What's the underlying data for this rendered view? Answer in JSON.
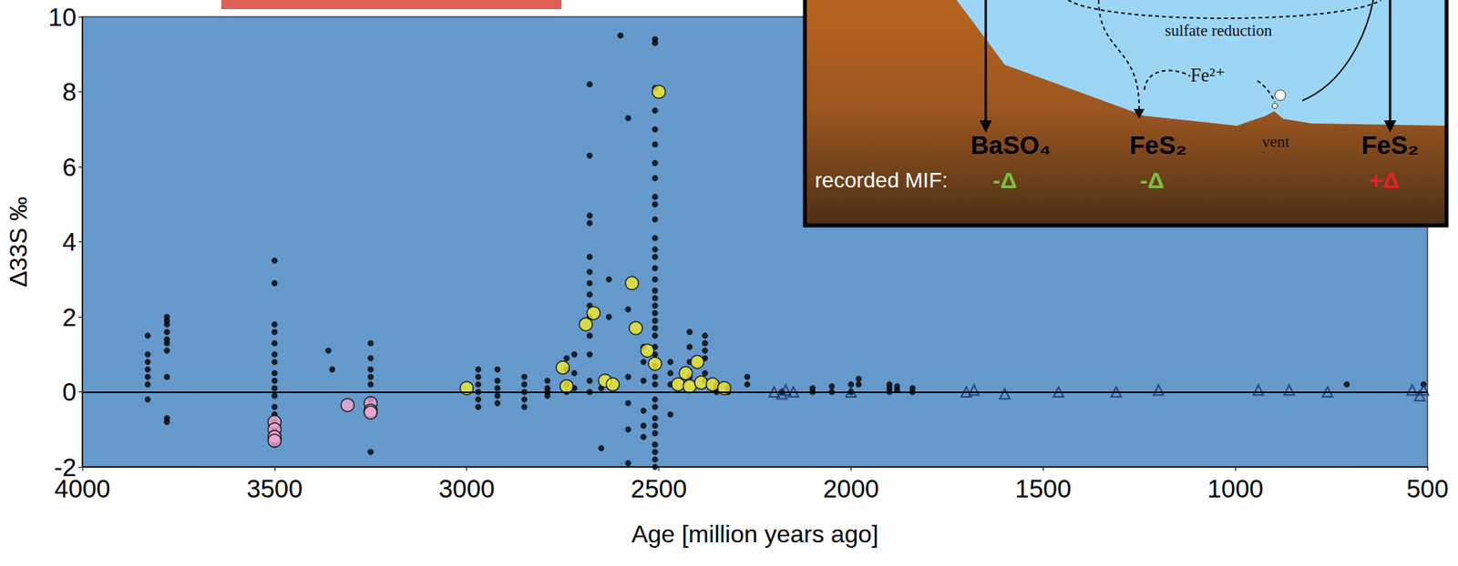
{
  "chart_data": {
    "type": "scatter",
    "x_label": "Age [million years ago]",
    "y_label": "Δ33S ‰",
    "xlim": [
      4000,
      500
    ],
    "xticks": [
      4000,
      3500,
      3000,
      2500,
      2000,
      1500,
      1000,
      500
    ],
    "ylim": [
      -2,
      10
    ],
    "yticks": [
      -2,
      0,
      2,
      4,
      6,
      8,
      10
    ],
    "grid": false,
    "reference_lines": [
      {
        "y": 0
      }
    ],
    "series": [
      {
        "color": "#000000",
        "marker": "dot",
        "x": [
          3830,
          3830,
          3830,
          3830,
          3830,
          3830,
          3830,
          3780,
          3780,
          3780,
          3780,
          3780,
          3780,
          3780,
          3780,
          3780,
          3780,
          3500,
          3500,
          3500,
          3500,
          3500,
          3500,
          3500,
          3500,
          3500,
          3500,
          3500,
          3500,
          3500,
          3500,
          3500,
          3500,
          3360,
          3350,
          3250,
          3250,
          3250,
          3250,
          3250,
          3250,
          3250,
          2970,
          2970,
          2970,
          2970,
          2970,
          2970,
          2920,
          2920,
          2920,
          2920,
          2920,
          2850,
          2850,
          2850,
          2850,
          2850,
          2790,
          2790,
          2790,
          2790,
          2740,
          2740,
          2740,
          2740,
          2720,
          2720,
          2720,
          2680,
          2680,
          2680,
          2680,
          2680,
          2680,
          2680,
          2680,
          2680,
          2680,
          2680,
          2680,
          2680,
          2680,
          2650,
          2650,
          2630,
          2630,
          2600,
          2580,
          2580,
          2580,
          2580,
          2580,
          2580,
          2540,
          2540,
          2540,
          2540,
          2540,
          2540,
          2510,
          2510,
          2510,
          2510,
          2510,
          2510,
          2510,
          2510,
          2510,
          2510,
          2510,
          2510,
          2510,
          2510,
          2510,
          2510,
          2510,
          2510,
          2510,
          2510,
          2510,
          2510,
          2510,
          2510,
          2510,
          2510,
          2510,
          2510,
          2510,
          2510,
          2510,
          2510,
          2510,
          2510,
          2510,
          2510,
          2510,
          2470,
          2470,
          2470,
          2470,
          2420,
          2420,
          2420,
          2420,
          2380,
          2380,
          2380,
          2380,
          2380,
          2380,
          2350,
          2350,
          2350,
          2320,
          2320,
          2270,
          2270,
          2180,
          2100,
          2100,
          2050,
          2050,
          2000,
          2000,
          1980,
          1980,
          1900,
          1900,
          1900,
          1880,
          1880,
          1840,
          1840,
          710,
          510
        ],
        "values": [
          1.5,
          1.0,
          0.8,
          0.6,
          0.4,
          0.2,
          -0.2,
          2.0,
          1.9,
          1.8,
          1.6,
          1.4,
          1.3,
          1.1,
          0.4,
          -0.7,
          -0.8,
          3.5,
          2.9,
          1.8,
          1.6,
          1.3,
          1.0,
          0.8,
          0.5,
          0.3,
          0.1,
          -0.1,
          -0.4,
          -0.6,
          -0.8,
          -1.0,
          -1.4,
          1.1,
          0.6,
          1.3,
          0.9,
          0.6,
          0.4,
          0.2,
          -0.2,
          -1.6,
          0.6,
          0.4,
          0.2,
          0.0,
          -0.2,
          -0.4,
          0.6,
          0.3,
          0.1,
          -0.1,
          -0.3,
          0.4,
          0.2,
          0.0,
          -0.2,
          -0.4,
          0.3,
          0.1,
          0.0,
          -0.1,
          0.9,
          0.6,
          0.2,
          0.0,
          1.0,
          0.5,
          0.1,
          8.2,
          6.3,
          4.7,
          4.5,
          3.6,
          3.2,
          2.9,
          2.6,
          2.3,
          2.0,
          1.5,
          1.0,
          0.3,
          0.0,
          0.1,
          -1.5,
          3.0,
          2.0,
          9.5,
          7.3,
          2.2,
          0.4,
          -0.3,
          -1.0,
          -1.9,
          1.2,
          0.8,
          0.3,
          -0.5,
          -0.9,
          -1.2,
          9.4,
          9.3,
          8.1,
          7.5,
          7.0,
          6.6,
          6.1,
          5.7,
          5.2,
          5.0,
          4.6,
          4.1,
          3.8,
          3.6,
          3.3,
          3.0,
          2.7,
          2.5,
          2.3,
          2.1,
          1.9,
          1.7,
          1.5,
          1.2,
          1.0,
          0.7,
          0.4,
          0.2,
          -0.2,
          -0.4,
          -0.7,
          -0.9,
          -1.1,
          -1.4,
          -1.6,
          -1.8,
          -2.0,
          0.8,
          0.5,
          0.2,
          -0.6,
          1.6,
          1.2,
          0.8,
          0.4,
          1.5,
          1.3,
          1.1,
          0.9,
          0.5,
          0.3,
          0.2,
          0.1,
          0.0,
          0.1,
          0.0,
          0.4,
          0.2,
          0.0,
          0.1,
          0.0,
          0.15,
          0.0,
          0.2,
          0.0,
          0.35,
          0.2,
          0.2,
          0.1,
          0.0,
          0.15,
          0.05,
          0.1,
          0.0,
          0.2,
          0.2
        ]
      },
      {
        "color": "#f2ea2e",
        "marker": "circle",
        "x": [
          3000,
          2750,
          2740,
          2690,
          2670,
          2640,
          2620,
          2570,
          2560,
          2530,
          2510,
          2500,
          2450,
          2430,
          2420,
          2400,
          2390,
          2360,
          2330
        ],
        "values": [
          0.1,
          0.65,
          0.15,
          1.8,
          2.1,
          0.3,
          0.2,
          2.9,
          1.7,
          1.1,
          0.75,
          8.0,
          0.2,
          0.5,
          0.15,
          0.8,
          0.25,
          0.2,
          0.1
        ]
      },
      {
        "color": "#eea6cf",
        "marker": "circle",
        "x": [
          3500,
          3500,
          3500,
          3500,
          3310,
          3250,
          3250,
          3250
        ],
        "values": [
          -0.8,
          -1.0,
          -1.2,
          -1.3,
          -0.35,
          -0.3,
          -0.5,
          -0.55
        ]
      },
      {
        "color": "#1c3563",
        "marker": "triangle-open",
        "x": [
          2200,
          2180,
          2170,
          2150,
          2000,
          1700,
          1680,
          1600,
          1460,
          1310,
          1200,
          940,
          860,
          760,
          540,
          520,
          510
        ],
        "values": [
          0,
          -0.05,
          0.05,
          0,
          0,
          0,
          0.05,
          -0.05,
          0,
          0,
          0.05,
          0.05,
          0.05,
          0,
          0.05,
          -0.1,
          0.05
        ]
      }
    ],
    "inset": {
      "process": "sulfate reduction",
      "ion": "Fe²⁺",
      "vent": "vent",
      "deposits": [
        "BaSO₄",
        "FeS₂",
        "FeS₂"
      ],
      "mif_label": "recorded MIF:",
      "mif": [
        {
          "text": "-Δ",
          "color": "#78c043"
        },
        {
          "text": "-Δ",
          "color": "#78c043"
        },
        {
          "text": "+Δ",
          "color": "#e8202a"
        }
      ]
    }
  }
}
